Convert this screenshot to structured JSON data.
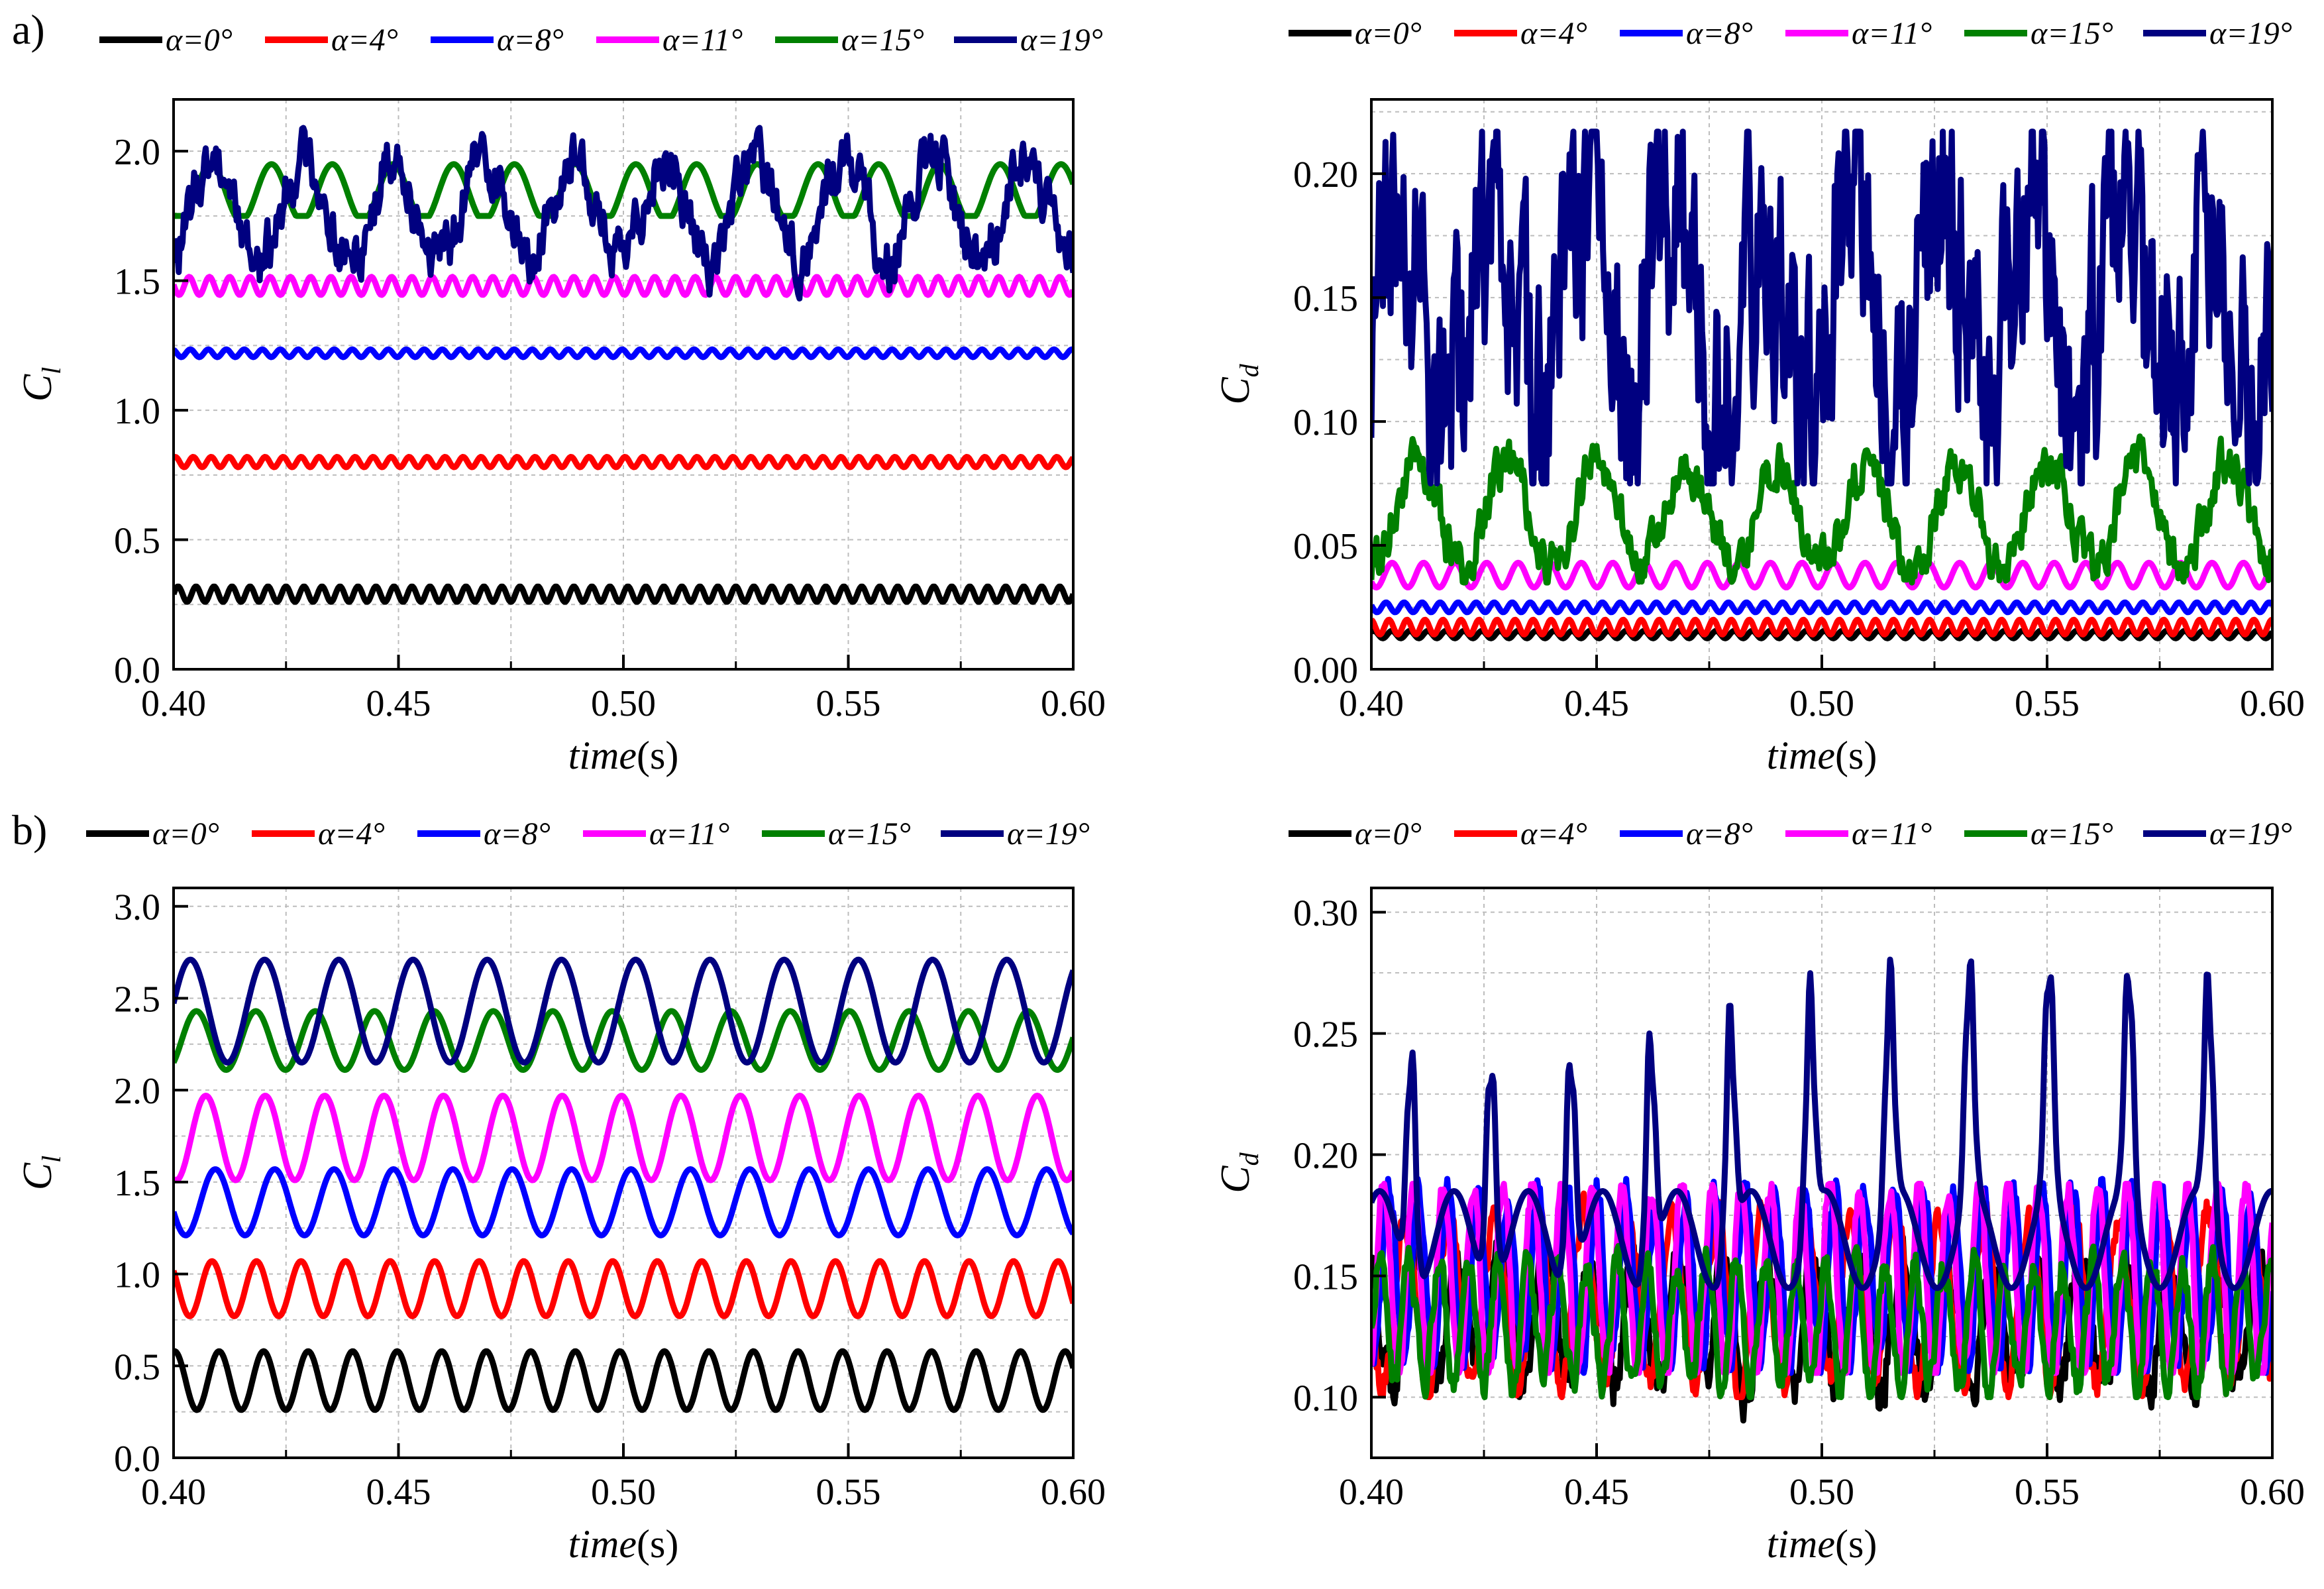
{
  "figure": {
    "panel_labels": [
      "a)",
      "b)"
    ],
    "xlabel_italic": "time",
    "xlabel_unit": "(s)"
  },
  "legend": [
    {
      "label": "α=0°",
      "color": "#000000"
    },
    {
      "label": "α=4°",
      "color": "#ff0000"
    },
    {
      "label": "α=8°",
      "color": "#0000ff"
    },
    {
      "label": "α=11°",
      "color": "#ff00ff"
    },
    {
      "label": "α=15°",
      "color": "#008000"
    },
    {
      "label": "α=19°",
      "color": "#000080"
    }
  ],
  "chart_data": [
    {
      "id": "a-cl",
      "panel": "a)",
      "type": "line",
      "ylabel": "C",
      "ylabel_sub": "l",
      "xlim": [
        0.4,
        0.6
      ],
      "ylim": [
        0.0,
        2.2
      ],
      "xticks": [
        "0.40",
        "0.45",
        "0.50",
        "0.55",
        "0.60"
      ],
      "yticks": [
        "0.0",
        "0.5",
        "1.0",
        "1.5",
        "2.0"
      ],
      "x": [
        0.4,
        0.6
      ],
      "series": [
        {
          "name": "α=0°",
          "mean": 0.29,
          "amp": 0.03,
          "period": 0.004
        },
        {
          "name": "α=4°",
          "mean": 0.8,
          "amp": 0.02,
          "period": 0.004
        },
        {
          "name": "α=8°",
          "mean": 1.22,
          "amp": 0.015,
          "period": 0.004
        },
        {
          "name": "α=11°",
          "mean": 1.48,
          "amp": 0.035,
          "period": 0.0045,
          "range": [
            1.43,
            1.53
          ]
        },
        {
          "name": "α=15°",
          "mean": 1.84,
          "amp": 0.11,
          "period": 0.0135,
          "range": [
            1.75,
            1.98
          ]
        },
        {
          "name": "α=19°",
          "mean": 1.78,
          "amp": 0.2,
          "period": 0.02,
          "noise": 0.09,
          "range": [
            1.42,
            2.09
          ]
        }
      ]
    },
    {
      "id": "a-cd",
      "panel": "a)",
      "type": "line",
      "ylabel": "C",
      "ylabel_sub": "d",
      "xlim": [
        0.4,
        0.6
      ],
      "ylim": [
        0.0,
        0.23
      ],
      "xticks": [
        "0.40",
        "0.45",
        "0.50",
        "0.55",
        "0.60"
      ],
      "yticks": [
        "0.00",
        "0.05",
        "0.10",
        "0.15",
        "0.20"
      ],
      "x": [
        0.4,
        0.6
      ],
      "series": [
        {
          "name": "α=0°",
          "mean": 0.014,
          "amp": 0.0015,
          "period": 0.004
        },
        {
          "name": "α=4°",
          "mean": 0.017,
          "amp": 0.003,
          "period": 0.004
        },
        {
          "name": "α=8°",
          "mean": 0.025,
          "amp": 0.002,
          "period": 0.004
        },
        {
          "name": "α=11°",
          "mean": 0.038,
          "amp": 0.005,
          "period": 0.007,
          "range": [
            0.026,
            0.046
          ]
        },
        {
          "name": "α=15°",
          "mean": 0.062,
          "amp": 0.02,
          "period": 0.02,
          "noise": 0.008,
          "range": [
            0.035,
            0.1
          ]
        },
        {
          "name": "α=19°",
          "mean": 0.145,
          "amp": 0.04,
          "period": 0.02,
          "noise": 0.045,
          "range": [
            0.075,
            0.217
          ]
        }
      ]
    },
    {
      "id": "b-cl",
      "panel": "b)",
      "type": "line",
      "ylabel": "C",
      "ylabel_sub": "l",
      "xlim": [
        0.4,
        0.6
      ],
      "ylim": [
        0.0,
        3.1
      ],
      "xticks": [
        "0.40",
        "0.45",
        "0.50",
        "0.55",
        "0.60"
      ],
      "yticks": [
        "0.0",
        "0.5",
        "1.0",
        "1.5",
        "2.0",
        "2.5",
        "3.0"
      ],
      "x": [
        0.4,
        0.6
      ],
      "series": [
        {
          "name": "α=0°",
          "mean": 0.42,
          "amp": 0.16,
          "period": 0.0099,
          "range": [
            0.26,
            0.58
          ]
        },
        {
          "name": "α=4°",
          "mean": 0.92,
          "amp": 0.15,
          "period": 0.0099,
          "range": [
            0.77,
            1.07
          ]
        },
        {
          "name": "α=8°",
          "mean": 1.39,
          "amp": 0.18,
          "period": 0.0132,
          "range": [
            1.21,
            1.57
          ]
        },
        {
          "name": "α=11°",
          "mean": 1.74,
          "amp": 0.23,
          "period": 0.0132,
          "range": [
            1.51,
            1.97
          ]
        },
        {
          "name": "α=15°",
          "mean": 2.27,
          "amp": 0.16,
          "period": 0.0132,
          "range": [
            2.1,
            2.44
          ]
        },
        {
          "name": "α=19°",
          "mean": 2.43,
          "amp": 0.28,
          "period": 0.0165,
          "range": [
            2.1,
            2.76
          ]
        }
      ]
    },
    {
      "id": "b-cd",
      "panel": "b)",
      "type": "line",
      "ylabel": "C",
      "ylabel_sub": "d",
      "xlim": [
        0.4,
        0.6
      ],
      "ylim": [
        0.075,
        0.31
      ],
      "xticks": [
        "0.40",
        "0.45",
        "0.50",
        "0.55",
        "0.60"
      ],
      "yticks": [
        "0.10",
        "0.15",
        "0.20",
        "0.25",
        "0.30"
      ],
      "x": [
        0.4,
        0.6
      ],
      "series": [
        {
          "name": "α=0°",
          "mean": 0.13,
          "amp": 0.025,
          "period": 0.0099,
          "noise": 0.01,
          "range": [
            0.09,
            0.18
          ]
        },
        {
          "name": "α=4°",
          "mean": 0.14,
          "amp": 0.035,
          "period": 0.0099,
          "noise": 0.006,
          "range": [
            0.1,
            0.185
          ]
        },
        {
          "name": "α=8°",
          "mean": 0.15,
          "amp": 0.035,
          "period": 0.0066,
          "noise": 0.006,
          "range": [
            0.11,
            0.19
          ]
        },
        {
          "name": "α=11°",
          "mean": 0.148,
          "amp": 0.04,
          "period": 0.0066,
          "noise": 0.005,
          "range": [
            0.11,
            0.188
          ]
        },
        {
          "name": "α=15°",
          "mean": 0.13,
          "amp": 0.025,
          "period": 0.0066,
          "noise": 0.006,
          "range": [
            0.1,
            0.165
          ]
        },
        {
          "name": "α=19°",
          "mean": 0.165,
          "amp": 0.02,
          "period": 0.0165,
          "peak": 0.27,
          "range": [
            0.14,
            0.281
          ]
        }
      ]
    }
  ]
}
